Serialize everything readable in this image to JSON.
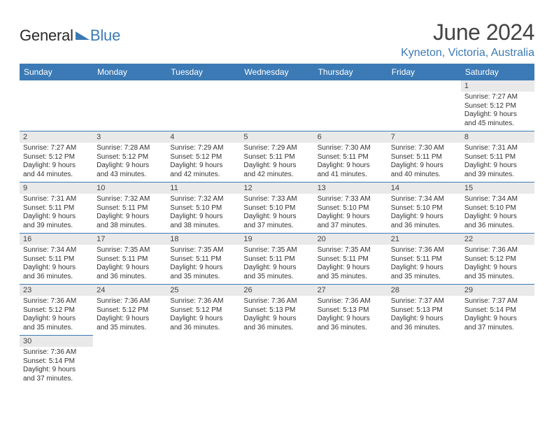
{
  "brand": {
    "part1": "General",
    "part2": "Blue"
  },
  "title": "June 2024",
  "location": "Kyneton, Victoria, Australia",
  "colors": {
    "accent": "#3b7ab5",
    "header_bg": "#3b7ab5",
    "daynum_bg": "#e9e9e9",
    "text": "#333333"
  },
  "weekdays": [
    "Sunday",
    "Monday",
    "Tuesday",
    "Wednesday",
    "Thursday",
    "Friday",
    "Saturday"
  ],
  "weeks": [
    [
      null,
      null,
      null,
      null,
      null,
      null,
      {
        "n": "1",
        "sr": "Sunrise: 7:27 AM",
        "ss": "Sunset: 5:12 PM",
        "d1": "Daylight: 9 hours",
        "d2": "and 45 minutes."
      }
    ],
    [
      {
        "n": "2",
        "sr": "Sunrise: 7:27 AM",
        "ss": "Sunset: 5:12 PM",
        "d1": "Daylight: 9 hours",
        "d2": "and 44 minutes."
      },
      {
        "n": "3",
        "sr": "Sunrise: 7:28 AM",
        "ss": "Sunset: 5:12 PM",
        "d1": "Daylight: 9 hours",
        "d2": "and 43 minutes."
      },
      {
        "n": "4",
        "sr": "Sunrise: 7:29 AM",
        "ss": "Sunset: 5:12 PM",
        "d1": "Daylight: 9 hours",
        "d2": "and 42 minutes."
      },
      {
        "n": "5",
        "sr": "Sunrise: 7:29 AM",
        "ss": "Sunset: 5:11 PM",
        "d1": "Daylight: 9 hours",
        "d2": "and 42 minutes."
      },
      {
        "n": "6",
        "sr": "Sunrise: 7:30 AM",
        "ss": "Sunset: 5:11 PM",
        "d1": "Daylight: 9 hours",
        "d2": "and 41 minutes."
      },
      {
        "n": "7",
        "sr": "Sunrise: 7:30 AM",
        "ss": "Sunset: 5:11 PM",
        "d1": "Daylight: 9 hours",
        "d2": "and 40 minutes."
      },
      {
        "n": "8",
        "sr": "Sunrise: 7:31 AM",
        "ss": "Sunset: 5:11 PM",
        "d1": "Daylight: 9 hours",
        "d2": "and 39 minutes."
      }
    ],
    [
      {
        "n": "9",
        "sr": "Sunrise: 7:31 AM",
        "ss": "Sunset: 5:11 PM",
        "d1": "Daylight: 9 hours",
        "d2": "and 39 minutes."
      },
      {
        "n": "10",
        "sr": "Sunrise: 7:32 AM",
        "ss": "Sunset: 5:11 PM",
        "d1": "Daylight: 9 hours",
        "d2": "and 38 minutes."
      },
      {
        "n": "11",
        "sr": "Sunrise: 7:32 AM",
        "ss": "Sunset: 5:10 PM",
        "d1": "Daylight: 9 hours",
        "d2": "and 38 minutes."
      },
      {
        "n": "12",
        "sr": "Sunrise: 7:33 AM",
        "ss": "Sunset: 5:10 PM",
        "d1": "Daylight: 9 hours",
        "d2": "and 37 minutes."
      },
      {
        "n": "13",
        "sr": "Sunrise: 7:33 AM",
        "ss": "Sunset: 5:10 PM",
        "d1": "Daylight: 9 hours",
        "d2": "and 37 minutes."
      },
      {
        "n": "14",
        "sr": "Sunrise: 7:34 AM",
        "ss": "Sunset: 5:10 PM",
        "d1": "Daylight: 9 hours",
        "d2": "and 36 minutes."
      },
      {
        "n": "15",
        "sr": "Sunrise: 7:34 AM",
        "ss": "Sunset: 5:10 PM",
        "d1": "Daylight: 9 hours",
        "d2": "and 36 minutes."
      }
    ],
    [
      {
        "n": "16",
        "sr": "Sunrise: 7:34 AM",
        "ss": "Sunset: 5:11 PM",
        "d1": "Daylight: 9 hours",
        "d2": "and 36 minutes."
      },
      {
        "n": "17",
        "sr": "Sunrise: 7:35 AM",
        "ss": "Sunset: 5:11 PM",
        "d1": "Daylight: 9 hours",
        "d2": "and 36 minutes."
      },
      {
        "n": "18",
        "sr": "Sunrise: 7:35 AM",
        "ss": "Sunset: 5:11 PM",
        "d1": "Daylight: 9 hours",
        "d2": "and 35 minutes."
      },
      {
        "n": "19",
        "sr": "Sunrise: 7:35 AM",
        "ss": "Sunset: 5:11 PM",
        "d1": "Daylight: 9 hours",
        "d2": "and 35 minutes."
      },
      {
        "n": "20",
        "sr": "Sunrise: 7:35 AM",
        "ss": "Sunset: 5:11 PM",
        "d1": "Daylight: 9 hours",
        "d2": "and 35 minutes."
      },
      {
        "n": "21",
        "sr": "Sunrise: 7:36 AM",
        "ss": "Sunset: 5:11 PM",
        "d1": "Daylight: 9 hours",
        "d2": "and 35 minutes."
      },
      {
        "n": "22",
        "sr": "Sunrise: 7:36 AM",
        "ss": "Sunset: 5:12 PM",
        "d1": "Daylight: 9 hours",
        "d2": "and 35 minutes."
      }
    ],
    [
      {
        "n": "23",
        "sr": "Sunrise: 7:36 AM",
        "ss": "Sunset: 5:12 PM",
        "d1": "Daylight: 9 hours",
        "d2": "and 35 minutes."
      },
      {
        "n": "24",
        "sr": "Sunrise: 7:36 AM",
        "ss": "Sunset: 5:12 PM",
        "d1": "Daylight: 9 hours",
        "d2": "and 35 minutes."
      },
      {
        "n": "25",
        "sr": "Sunrise: 7:36 AM",
        "ss": "Sunset: 5:12 PM",
        "d1": "Daylight: 9 hours",
        "d2": "and 36 minutes."
      },
      {
        "n": "26",
        "sr": "Sunrise: 7:36 AM",
        "ss": "Sunset: 5:13 PM",
        "d1": "Daylight: 9 hours",
        "d2": "and 36 minutes."
      },
      {
        "n": "27",
        "sr": "Sunrise: 7:36 AM",
        "ss": "Sunset: 5:13 PM",
        "d1": "Daylight: 9 hours",
        "d2": "and 36 minutes."
      },
      {
        "n": "28",
        "sr": "Sunrise: 7:37 AM",
        "ss": "Sunset: 5:13 PM",
        "d1": "Daylight: 9 hours",
        "d2": "and 36 minutes."
      },
      {
        "n": "29",
        "sr": "Sunrise: 7:37 AM",
        "ss": "Sunset: 5:14 PM",
        "d1": "Daylight: 9 hours",
        "d2": "and 37 minutes."
      }
    ],
    [
      {
        "n": "30",
        "sr": "Sunrise: 7:36 AM",
        "ss": "Sunset: 5:14 PM",
        "d1": "Daylight: 9 hours",
        "d2": "and 37 minutes."
      },
      null,
      null,
      null,
      null,
      null,
      null
    ]
  ]
}
